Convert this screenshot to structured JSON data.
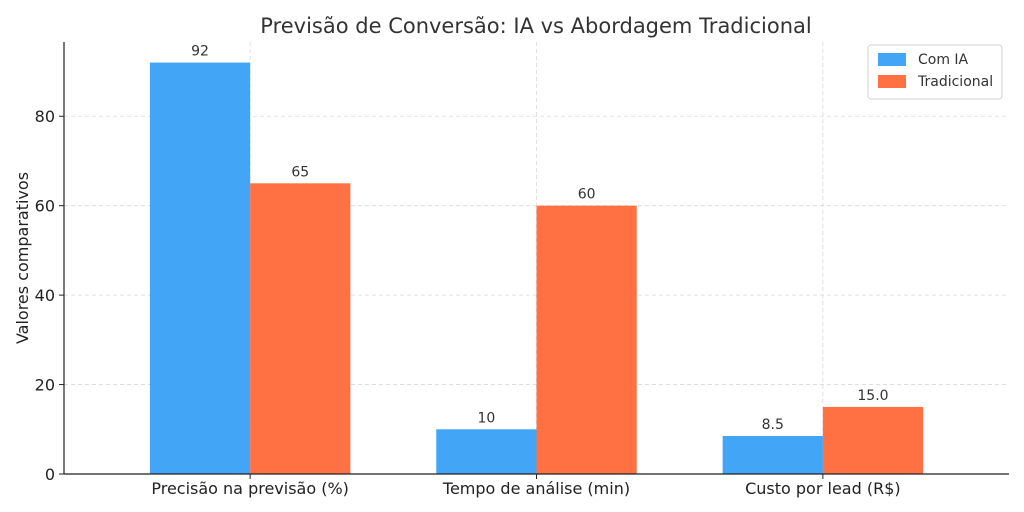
{
  "chart_data": {
    "type": "bar",
    "title": "Previsão de Conversão: IA vs Abordagem Tradicional",
    "xlabel": "",
    "ylabel": "Valores comparativos",
    "categories": [
      "Precisão na previsão (%)",
      "Tempo de análise (min)",
      "Custo por lead (R$)"
    ],
    "series": [
      {
        "name": "Com IA",
        "color": "#42A5F5",
        "values": [
          92,
          10,
          8.5
        ],
        "labels": [
          "92",
          "10",
          "8.5"
        ]
      },
      {
        "name": "Tradicional",
        "color": "#FF7043",
        "values": [
          65,
          60,
          15.0
        ],
        "labels": [
          "65",
          "60",
          "15.0"
        ]
      }
    ],
    "ylim": [
      0,
      96.6
    ],
    "yticks": [
      0,
      20,
      40,
      60,
      80
    ],
    "grid": true,
    "legend": "top-right"
  }
}
